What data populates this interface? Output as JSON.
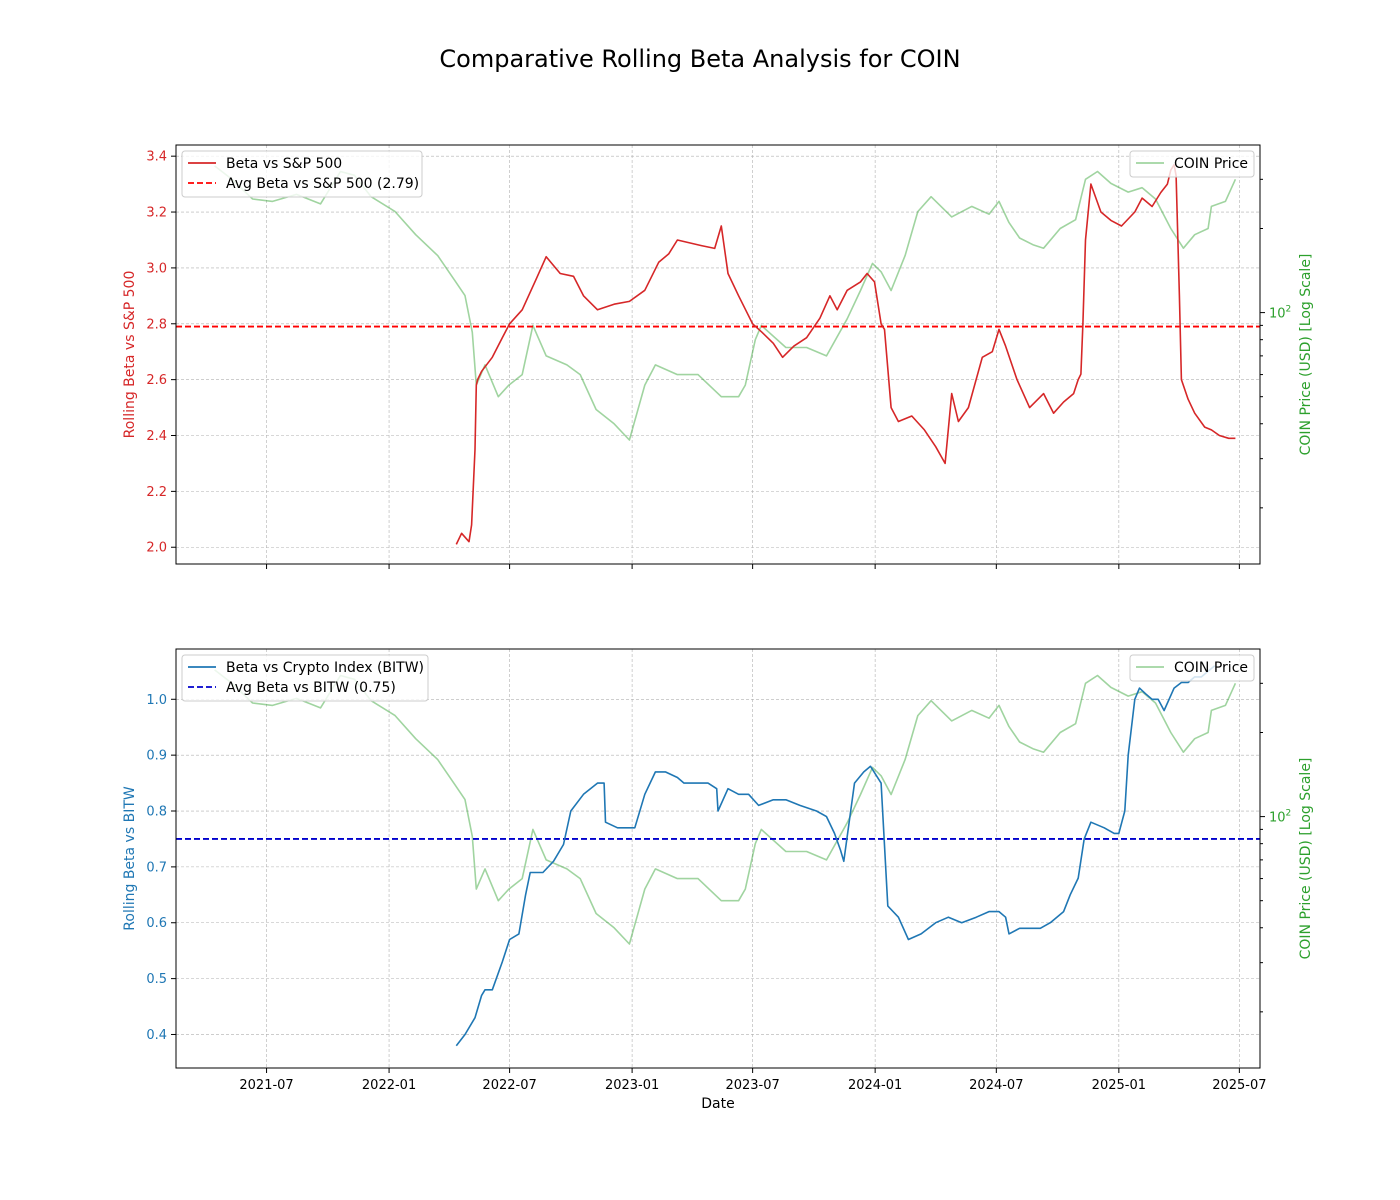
{
  "chart_data": {
    "suptitle": "Comparative Rolling Beta Analysis for COIN",
    "xlabel": "Date",
    "x_ticks": [
      "2021-07",
      "2022-01",
      "2022-07",
      "2023-01",
      "2023-07",
      "2024-01",
      "2024-07",
      "2025-01",
      "2025-07"
    ],
    "x_range": [
      "2021-02-15",
      "2025-08-01"
    ],
    "colors": {
      "sp500_beta": "#d62728",
      "sp500_avg": "#ff0000",
      "bitw_beta": "#1f77b4",
      "bitw_avg": "#0000cc",
      "price": "#2ca02c",
      "grid": "#b0b0b0"
    },
    "price_series": {
      "name": "COIN Price",
      "axis_label": "COIN Price (USD) [Log Scale]",
      "tick_label": "10",
      "tick_exponent": "2",
      "scale": "log",
      "dates": [
        "2021-04-14",
        "2021-05-10",
        "2021-06-10",
        "2021-07-10",
        "2021-08-15",
        "2021-09-20",
        "2021-10-20",
        "2021-11-10",
        "2021-12-05",
        "2022-01-10",
        "2022-02-10",
        "2022-03-15",
        "2022-04-10",
        "2022-04-25",
        "2022-05-06",
        "2022-05-12",
        "2022-05-25",
        "2022-06-14",
        "2022-06-30",
        "2022-07-20",
        "2022-08-05",
        "2022-08-25",
        "2022-09-25",
        "2022-10-15",
        "2022-11-08",
        "2022-12-05",
        "2022-12-28",
        "2023-01-20",
        "2023-02-05",
        "2023-03-10",
        "2023-04-10",
        "2023-05-15",
        "2023-06-10",
        "2023-06-20",
        "2023-07-05",
        "2023-07-14",
        "2023-08-20",
        "2023-09-20",
        "2023-10-20",
        "2023-11-20",
        "2023-12-10",
        "2023-12-28",
        "2024-01-10",
        "2024-01-25",
        "2024-02-15",
        "2024-03-05",
        "2024-03-25",
        "2024-04-25",
        "2024-05-25",
        "2024-06-20",
        "2024-07-05",
        "2024-07-20",
        "2024-08-05",
        "2024-08-25",
        "2024-09-10",
        "2024-10-05",
        "2024-10-28",
        "2024-11-12",
        "2024-11-30",
        "2024-12-20",
        "2025-01-15",
        "2025-02-05",
        "2025-02-25",
        "2025-03-20",
        "2025-04-08",
        "2025-04-25",
        "2025-05-15",
        "2025-05-20",
        "2025-06-10",
        "2025-06-25"
      ],
      "values": [
        335,
        300,
        255,
        250,
        265,
        245,
        320,
        310,
        260,
        230,
        190,
        160,
        130,
        115,
        85,
        55,
        65,
        50,
        55,
        60,
        90,
        70,
        65,
        60,
        45,
        40,
        35,
        55,
        65,
        60,
        60,
        50,
        50,
        55,
        80,
        90,
        75,
        75,
        70,
        95,
        120,
        150,
        140,
        120,
        160,
        230,
        260,
        220,
        240,
        225,
        250,
        210,
        185,
        175,
        170,
        200,
        215,
        300,
        320,
        290,
        270,
        280,
        255,
        200,
        170,
        190,
        200,
        240,
        250,
        300
      ]
    },
    "panels": [
      {
        "ylabel": "Rolling Beta vs S&P 500",
        "ylim": [
          1.94,
          3.44
        ],
        "y_ticks": [
          "2.0",
          "2.2",
          "2.4",
          "2.6",
          "2.8",
          "3.0",
          "3.2",
          "3.4"
        ],
        "price_axis_log_range": [
          1.1,
          2.6
        ],
        "avg_value": 2.79,
        "series": [
          {
            "name": "Beta vs S&P 500",
            "dates": [
              "2022-04-12",
              "2022-04-20",
              "2022-05-01",
              "2022-05-05",
              "2022-05-10",
              "2022-05-12",
              "2022-05-14",
              "2022-05-20",
              "2022-06-05",
              "2022-06-20",
              "2022-07-01",
              "2022-07-20",
              "2022-08-10",
              "2022-08-25",
              "2022-09-15",
              "2022-10-05",
              "2022-10-20",
              "2022-11-10",
              "2022-12-05",
              "2022-12-28",
              "2023-01-20",
              "2023-02-10",
              "2023-02-25",
              "2023-03-10",
              "2023-04-15",
              "2023-05-05",
              "2023-05-15",
              "2023-05-25",
              "2023-06-10",
              "2023-07-01",
              "2023-07-15",
              "2023-08-01",
              "2023-08-15",
              "2023-09-01",
              "2023-09-20",
              "2023-10-10",
              "2023-10-25",
              "2023-11-05",
              "2023-11-20",
              "2023-12-10",
              "2023-12-20",
              "2023-12-31",
              "2024-01-10",
              "2024-01-15",
              "2024-01-25",
              "2024-02-05",
              "2024-02-25",
              "2024-03-15",
              "2024-04-01",
              "2024-04-15",
              "2024-04-25",
              "2024-05-05",
              "2024-05-20",
              "2024-06-10",
              "2024-06-25",
              "2024-07-05",
              "2024-07-15",
              "2024-08-01",
              "2024-08-20",
              "2024-09-10",
              "2024-09-25",
              "2024-10-10",
              "2024-10-25",
              "2024-11-01",
              "2024-11-05",
              "2024-11-08",
              "2024-11-12",
              "2024-11-20",
              "2024-12-05",
              "2024-12-20",
              "2025-01-05",
              "2025-01-25",
              "2025-02-05",
              "2025-02-20",
              "2025-03-05",
              "2025-03-15",
              "2025-03-20",
              "2025-03-25",
              "2025-03-28",
              "2025-04-02",
              "2025-04-05",
              "2025-04-15",
              "2025-04-25",
              "2025-05-10",
              "2025-05-20",
              "2025-06-01",
              "2025-06-15",
              "2025-06-25"
            ],
            "values": [
              2.01,
              2.05,
              2.02,
              2.08,
              2.35,
              2.58,
              2.6,
              2.63,
              2.68,
              2.75,
              2.8,
              2.85,
              2.96,
              3.04,
              2.98,
              2.97,
              2.9,
              2.85,
              2.87,
              2.88,
              2.92,
              3.02,
              3.05,
              3.1,
              3.08,
              3.07,
              3.15,
              2.98,
              2.9,
              2.8,
              2.77,
              2.73,
              2.68,
              2.72,
              2.75,
              2.82,
              2.9,
              2.85,
              2.92,
              2.95,
              2.98,
              2.95,
              2.8,
              2.78,
              2.5,
              2.45,
              2.47,
              2.42,
              2.36,
              2.3,
              2.55,
              2.45,
              2.5,
              2.68,
              2.7,
              2.78,
              2.72,
              2.6,
              2.5,
              2.55,
              2.48,
              2.52,
              2.55,
              2.6,
              2.62,
              2.8,
              3.1,
              3.3,
              3.2,
              3.17,
              3.15,
              3.2,
              3.25,
              3.22,
              3.27,
              3.3,
              3.35,
              3.37,
              3.33,
              2.9,
              2.6,
              2.53,
              2.48,
              2.43,
              2.42,
              2.4,
              2.39,
              2.39
            ]
          }
        ],
        "legend": [
          "Beta vs S&P 500",
          "Avg Beta vs S&P 500 (2.79)"
        ],
        "price_legend": "COIN Price"
      },
      {
        "ylabel": "Rolling Beta vs BITW",
        "ylim": [
          0.34,
          1.09
        ],
        "y_ticks": [
          "0.4",
          "0.5",
          "0.6",
          "0.7",
          "0.8",
          "0.9",
          "1.0"
        ],
        "price_axis_log_range": [
          1.1,
          2.6
        ],
        "avg_value": 0.75,
        "series": [
          {
            "name": "Beta vs Crypto Index (BITW)",
            "dates": [
              "2022-04-12",
              "2022-04-25",
              "2022-05-10",
              "2022-05-20",
              "2022-05-25",
              "2022-06-05",
              "2022-06-20",
              "2022-07-01",
              "2022-07-15",
              "2022-07-25",
              "2022-08-01",
              "2022-08-20",
              "2022-09-05",
              "2022-09-20",
              "2022-10-01",
              "2022-10-20",
              "2022-11-10",
              "2022-11-20",
              "2022-11-22",
              "2022-12-10",
              "2023-01-05",
              "2023-01-20",
              "2023-02-05",
              "2023-02-20",
              "2023-03-10",
              "2023-03-20",
              "2023-04-10",
              "2023-04-25",
              "2023-05-08",
              "2023-05-10",
              "2023-05-25",
              "2023-06-10",
              "2023-06-25",
              "2023-07-10",
              "2023-08-01",
              "2023-08-20",
              "2023-09-10",
              "2023-10-05",
              "2023-10-20",
              "2023-11-01",
              "2023-11-10",
              "2023-11-15",
              "2023-12-01",
              "2023-12-15",
              "2023-12-25",
              "2024-01-10",
              "2024-01-20",
              "2024-02-05",
              "2024-02-20",
              "2024-03-10",
              "2024-04-01",
              "2024-04-20",
              "2024-05-10",
              "2024-06-01",
              "2024-06-20",
              "2024-07-05",
              "2024-07-15",
              "2024-07-20",
              "2024-08-05",
              "2024-08-20",
              "2024-09-05",
              "2024-09-20",
              "2024-10-10",
              "2024-10-20",
              "2024-11-01",
              "2024-11-10",
              "2024-11-20",
              "2024-12-10",
              "2024-12-25",
              "2025-01-01",
              "2025-01-10",
              "2025-01-15",
              "2025-01-25",
              "2025-02-01",
              "2025-02-10",
              "2025-02-20",
              "2025-03-01",
              "2025-03-10",
              "2025-03-25",
              "2025-04-05",
              "2025-04-15",
              "2025-04-25",
              "2025-05-05",
              "2025-05-15",
              "2025-05-25"
            ],
            "values": [
              0.38,
              0.4,
              0.43,
              0.47,
              0.48,
              0.48,
              0.53,
              0.57,
              0.58,
              0.65,
              0.69,
              0.69,
              0.71,
              0.74,
              0.8,
              0.83,
              0.85,
              0.85,
              0.78,
              0.77,
              0.77,
              0.83,
              0.87,
              0.87,
              0.86,
              0.85,
              0.85,
              0.85,
              0.84,
              0.8,
              0.84,
              0.83,
              0.83,
              0.81,
              0.82,
              0.82,
              0.81,
              0.8,
              0.79,
              0.76,
              0.73,
              0.71,
              0.85,
              0.87,
              0.88,
              0.85,
              0.63,
              0.61,
              0.57,
              0.58,
              0.6,
              0.61,
              0.6,
              0.61,
              0.62,
              0.62,
              0.61,
              0.58,
              0.59,
              0.59,
              0.59,
              0.6,
              0.62,
              0.65,
              0.68,
              0.75,
              0.78,
              0.77,
              0.76,
              0.76,
              0.8,
              0.9,
              1.0,
              1.02,
              1.01,
              1.0,
              1.0,
              0.98,
              1.02,
              1.03,
              1.03,
              1.04,
              1.04,
              1.05,
              1.06
            ]
          }
        ],
        "legend": [
          "Beta vs Crypto Index (BITW)",
          "Avg Beta vs BITW (0.75)"
        ],
        "price_legend": "COIN Price"
      }
    ],
    "grid": true,
    "legend_placement": [
      "upper-left",
      "upper-right"
    ]
  }
}
